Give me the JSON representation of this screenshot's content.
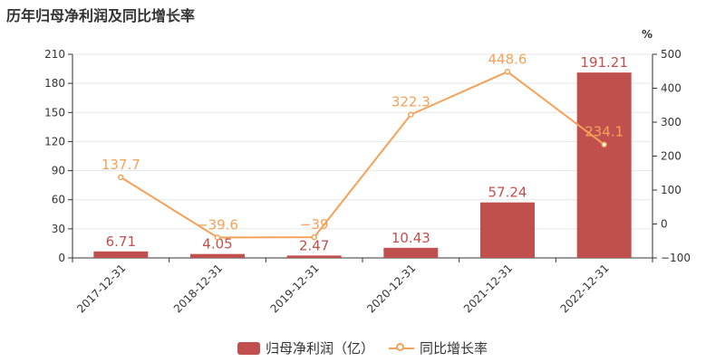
{
  "title": "历年归母净利润及同比增长率",
  "colors": {
    "bar": "#c0504d",
    "line": "#f4a259",
    "axis": "#333333",
    "grid": "#e6e6e6"
  },
  "chart_data": {
    "type": "bar",
    "title": "历年归母净利润及同比增长率",
    "categories": [
      "2017-12-31",
      "2018-12-31",
      "2019-12-31",
      "2020-12-31",
      "2021-12-31",
      "2022-12-31"
    ],
    "series": [
      {
        "name": "归母净利润（亿）",
        "type": "bar",
        "axis": "left",
        "values": [
          6.71,
          4.05,
          2.47,
          10.43,
          57.24,
          191.21
        ],
        "labels": [
          "6.71",
          "4.05",
          "2.47",
          "10.43",
          "57.24",
          "191.21"
        ]
      },
      {
        "name": "同比增长率",
        "type": "line",
        "axis": "right",
        "values": [
          137.7,
          -39.6,
          -39,
          322.3,
          448.6,
          234.1
        ],
        "labels": [
          "137.7",
          "−39.6",
          "−39",
          "322.3",
          "448.6",
          "234.1"
        ]
      }
    ],
    "y_left": {
      "min": 0,
      "max": 210,
      "ticks": [
        0,
        30,
        60,
        90,
        120,
        150,
        180,
        210
      ]
    },
    "y_right": {
      "label": "%",
      "min": -100,
      "max": 500,
      "ticks": [
        -100,
        0,
        100,
        200,
        300,
        400,
        500
      ],
      "tick_labels": [
        "−100",
        "0",
        "100",
        "200",
        "300",
        "400",
        "500"
      ]
    },
    "grid": true,
    "legend": "bottom-center"
  }
}
